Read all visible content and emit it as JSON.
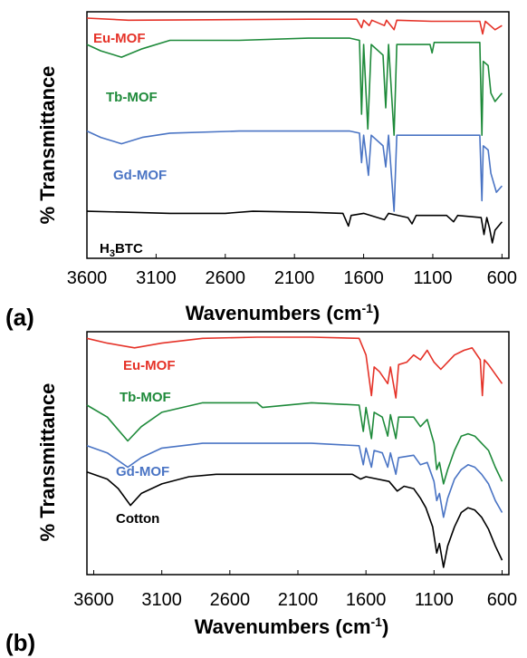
{
  "chart_data": [
    {
      "type": "line",
      "panel_label": "(a)",
      "xlabel": "Wavenumbers (cm",
      "xlabel_sup": "-1",
      "xlabel_end": ")",
      "ylabel": "% Transmittance",
      "xlim": [
        3600,
        550
      ],
      "x_ticks": [
        "3600",
        "3100",
        "2600",
        "2100",
        "1600",
        "1100",
        "600"
      ],
      "x_tick_values": [
        3600,
        3100,
        2600,
        2100,
        1600,
        1100,
        600
      ],
      "y_ticks_shown": false,
      "series": [
        {
          "name": "Eu-MOF",
          "color": "#e53228",
          "points": [
            [
              3600,
              0.975
            ],
            [
              3300,
              0.965
            ],
            [
              2000,
              0.97
            ],
            [
              1650,
              0.97
            ],
            [
              1615,
              0.93
            ],
            [
              1600,
              0.965
            ],
            [
              1560,
              0.94
            ],
            [
              1540,
              0.965
            ],
            [
              1450,
              0.94
            ],
            [
              1435,
              0.965
            ],
            [
              1380,
              0.92
            ],
            [
              1360,
              0.965
            ],
            [
              1110,
              0.96
            ],
            [
              760,
              0.96
            ],
            [
              740,
              0.9
            ],
            [
              720,
              0.96
            ],
            [
              650,
              0.92
            ],
            [
              600,
              0.94
            ]
          ]
        },
        {
          "name": "Tb-MOF",
          "color": "#1e8a3a",
          "points": [
            [
              3600,
              0.85
            ],
            [
              3500,
              0.82
            ],
            [
              3350,
              0.79
            ],
            [
              3200,
              0.83
            ],
            [
              3000,
              0.87
            ],
            [
              2500,
              0.87
            ],
            [
              2000,
              0.88
            ],
            [
              1700,
              0.88
            ],
            [
              1630,
              0.87
            ],
            [
              1615,
              0.52
            ],
            [
              1600,
              0.85
            ],
            [
              1570,
              0.45
            ],
            [
              1545,
              0.85
            ],
            [
              1460,
              0.8
            ],
            [
              1440,
              0.55
            ],
            [
              1420,
              0.85
            ],
            [
              1380,
              0.42
            ],
            [
              1360,
              0.85
            ],
            [
              1120,
              0.85
            ],
            [
              1105,
              0.81
            ],
            [
              1090,
              0.86
            ],
            [
              760,
              0.86
            ],
            [
              745,
              0.42
            ],
            [
              735,
              0.77
            ],
            [
              700,
              0.75
            ],
            [
              680,
              0.62
            ],
            [
              650,
              0.58
            ],
            [
              600,
              0.62
            ]
          ]
        },
        {
          "name": "Gd-MOF",
          "color": "#4a74c4",
          "points": [
            [
              3600,
              0.44
            ],
            [
              3500,
              0.41
            ],
            [
              3350,
              0.38
            ],
            [
              3200,
              0.41
            ],
            [
              3000,
              0.43
            ],
            [
              2500,
              0.44
            ],
            [
              2000,
              0.44
            ],
            [
              1700,
              0.44
            ],
            [
              1630,
              0.43
            ],
            [
              1615,
              0.29
            ],
            [
              1600,
              0.42
            ],
            [
              1565,
              0.23
            ],
            [
              1545,
              0.42
            ],
            [
              1460,
              0.37
            ],
            [
              1440,
              0.27
            ],
            [
              1420,
              0.42
            ],
            [
              1380,
              0.06
            ],
            [
              1360,
              0.42
            ],
            [
              1110,
              0.42
            ],
            [
              760,
              0.42
            ],
            [
              745,
              0.11
            ],
            [
              735,
              0.37
            ],
            [
              700,
              0.35
            ],
            [
              680,
              0.24
            ],
            [
              640,
              0.15
            ],
            [
              600,
              0.18
            ]
          ]
        },
        {
          "name": "H3BTC",
          "color": "#000000",
          "points": [
            [
              3600,
              0.06
            ],
            [
              3300,
              0.055
            ],
            [
              3000,
              0.05
            ],
            [
              2600,
              0.05
            ],
            [
              2400,
              0.06
            ],
            [
              2000,
              0.055
            ],
            [
              1750,
              0.05
            ],
            [
              1710,
              -0.01
            ],
            [
              1690,
              0.04
            ],
            [
              1600,
              0.05
            ],
            [
              1450,
              0.02
            ],
            [
              1420,
              0.05
            ],
            [
              1280,
              0.03
            ],
            [
              1250,
              0.0
            ],
            [
              1220,
              0.04
            ],
            [
              1000,
              0.04
            ],
            [
              950,
              0.01
            ],
            [
              920,
              0.04
            ],
            [
              750,
              0.03
            ],
            [
              730,
              -0.05
            ],
            [
              710,
              0.03
            ],
            [
              690,
              -0.02
            ],
            [
              670,
              -0.09
            ],
            [
              650,
              -0.03
            ],
            [
              600,
              0.01
            ]
          ]
        }
      ],
      "series_labels": [
        {
          "text": "Eu-MOF",
          "color": "#e53228"
        },
        {
          "text": "Tb-MOF",
          "color": "#1e8a3a"
        },
        {
          "text": "Gd-MOF",
          "color": "#4a74c4"
        },
        {
          "text": "H",
          "sub": "3",
          "text_end": "BTC",
          "color": "#000000"
        }
      ]
    },
    {
      "type": "line",
      "panel_label": "(b)",
      "xlabel": "Wavenumbers (cm",
      "xlabel_sup": "-1",
      "xlabel_end": ")",
      "ylabel": "% Transmittance",
      "xlim": [
        3650,
        550
      ],
      "x_ticks": [
        "3600",
        "3100",
        "2600",
        "2100",
        "1600",
        "1100",
        "600"
      ],
      "x_tick_values": [
        3600,
        3100,
        2600,
        2100,
        1600,
        1100,
        600
      ],
      "y_ticks_shown": false,
      "series": [
        {
          "name": "Eu-MOF",
          "color": "#e53228",
          "points": [
            [
              3650,
              0.97
            ],
            [
              3500,
              0.95
            ],
            [
              3300,
              0.93
            ],
            [
              3100,
              0.95
            ],
            [
              2800,
              0.97
            ],
            [
              2400,
              0.975
            ],
            [
              2000,
              0.975
            ],
            [
              1650,
              0.97
            ],
            [
              1600,
              0.9
            ],
            [
              1560,
              0.73
            ],
            [
              1540,
              0.85
            ],
            [
              1500,
              0.83
            ],
            [
              1440,
              0.78
            ],
            [
              1420,
              0.85
            ],
            [
              1380,
              0.72
            ],
            [
              1360,
              0.86
            ],
            [
              1300,
              0.87
            ],
            [
              1250,
              0.9
            ],
            [
              1200,
              0.88
            ],
            [
              1150,
              0.92
            ],
            [
              1100,
              0.87
            ],
            [
              1050,
              0.84
            ],
            [
              1000,
              0.87
            ],
            [
              950,
              0.9
            ],
            [
              880,
              0.92
            ],
            [
              820,
              0.93
            ],
            [
              760,
              0.88
            ],
            [
              745,
              0.73
            ],
            [
              730,
              0.88
            ],
            [
              700,
              0.86
            ],
            [
              650,
              0.82
            ],
            [
              600,
              0.78
            ]
          ]
        },
        {
          "name": "Tb-MOF",
          "color": "#1e8a3a",
          "points": [
            [
              3650,
              0.69
            ],
            [
              3500,
              0.64
            ],
            [
              3350,
              0.54
            ],
            [
              3250,
              0.6
            ],
            [
              3100,
              0.66
            ],
            [
              2800,
              0.7
            ],
            [
              2400,
              0.7
            ],
            [
              2360,
              0.68
            ],
            [
              2000,
              0.7
            ],
            [
              1650,
              0.69
            ],
            [
              1620,
              0.58
            ],
            [
              1600,
              0.68
            ],
            [
              1560,
              0.55
            ],
            [
              1540,
              0.66
            ],
            [
              1480,
              0.64
            ],
            [
              1440,
              0.56
            ],
            [
              1420,
              0.65
            ],
            [
              1380,
              0.55
            ],
            [
              1360,
              0.64
            ],
            [
              1250,
              0.64
            ],
            [
              1200,
              0.6
            ],
            [
              1150,
              0.63
            ],
            [
              1100,
              0.53
            ],
            [
              1080,
              0.42
            ],
            [
              1060,
              0.45
            ],
            [
              1030,
              0.36
            ],
            [
              1000,
              0.42
            ],
            [
              950,
              0.5
            ],
            [
              900,
              0.56
            ],
            [
              850,
              0.57
            ],
            [
              800,
              0.56
            ],
            [
              750,
              0.53
            ],
            [
              700,
              0.5
            ],
            [
              650,
              0.43
            ],
            [
              600,
              0.37
            ]
          ]
        },
        {
          "name": "Gd-MOF",
          "color": "#4a74c4",
          "points": [
            [
              3650,
              0.52
            ],
            [
              3500,
              0.49
            ],
            [
              3350,
              0.43
            ],
            [
              3250,
              0.47
            ],
            [
              3100,
              0.51
            ],
            [
              2800,
              0.53
            ],
            [
              2400,
              0.53
            ],
            [
              2000,
              0.53
            ],
            [
              1650,
              0.52
            ],
            [
              1620,
              0.44
            ],
            [
              1600,
              0.51
            ],
            [
              1560,
              0.43
            ],
            [
              1540,
              0.5
            ],
            [
              1480,
              0.49
            ],
            [
              1440,
              0.43
            ],
            [
              1420,
              0.49
            ],
            [
              1380,
              0.4
            ],
            [
              1360,
              0.47
            ],
            [
              1250,
              0.48
            ],
            [
              1200,
              0.44
            ],
            [
              1150,
              0.45
            ],
            [
              1100,
              0.37
            ],
            [
              1080,
              0.29
            ],
            [
              1060,
              0.32
            ],
            [
              1030,
              0.22
            ],
            [
              1000,
              0.3
            ],
            [
              950,
              0.38
            ],
            [
              900,
              0.42
            ],
            [
              850,
              0.44
            ],
            [
              800,
              0.43
            ],
            [
              750,
              0.4
            ],
            [
              700,
              0.36
            ],
            [
              650,
              0.29
            ],
            [
              600,
              0.24
            ]
          ]
        },
        {
          "name": "Cotton",
          "color": "#000000",
          "points": [
            [
              3650,
              0.41
            ],
            [
              3500,
              0.38
            ],
            [
              3420,
              0.34
            ],
            [
              3330,
              0.27
            ],
            [
              3250,
              0.32
            ],
            [
              3100,
              0.36
            ],
            [
              2900,
              0.39
            ],
            [
              2700,
              0.4
            ],
            [
              2400,
              0.4
            ],
            [
              2000,
              0.4
            ],
            [
              1700,
              0.4
            ],
            [
              1640,
              0.38
            ],
            [
              1600,
              0.39
            ],
            [
              1430,
              0.37
            ],
            [
              1370,
              0.33
            ],
            [
              1320,
              0.35
            ],
            [
              1250,
              0.34
            ],
            [
              1200,
              0.3
            ],
            [
              1160,
              0.26
            ],
            [
              1110,
              0.18
            ],
            [
              1080,
              0.07
            ],
            [
              1060,
              0.11
            ],
            [
              1030,
              0.01
            ],
            [
              1000,
              0.1
            ],
            [
              950,
              0.18
            ],
            [
              900,
              0.24
            ],
            [
              850,
              0.26
            ],
            [
              800,
              0.25
            ],
            [
              750,
              0.22
            ],
            [
              700,
              0.17
            ],
            [
              650,
              0.1
            ],
            [
              600,
              0.04
            ]
          ]
        }
      ],
      "series_labels": [
        {
          "text": "Eu-MOF",
          "color": "#e53228"
        },
        {
          "text": "Tb-MOF",
          "color": "#1e8a3a"
        },
        {
          "text": "Gd-MOF",
          "color": "#4a74c4"
        },
        {
          "text": "Cotton",
          "color": "#000000"
        }
      ]
    }
  ]
}
